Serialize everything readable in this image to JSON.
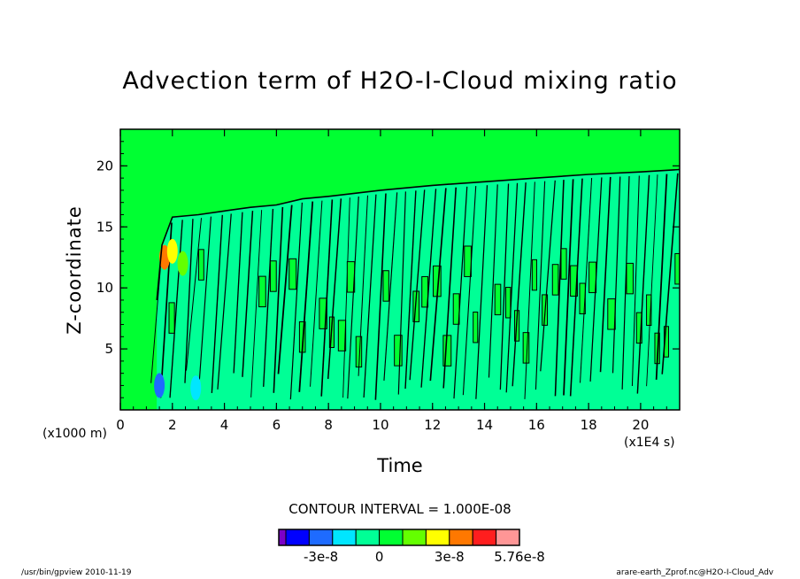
{
  "page": {
    "title": "Advection term of H2O-I-Cloud mixing ratio",
    "x_units": "(x1000 m)",
    "x_scale": "(x1E4 s)",
    "contour_interval": "CONTOUR INTERVAL = 1.000E-08",
    "footer_left": "/usr/bin/gpview  2010-11-19",
    "footer_right": "arare-earth_Zprof.nc@H2O-I-Cloud_Adv"
  },
  "chart_data": {
    "type": "heatmap",
    "title": "Advection term of H2O-I-Cloud mixing ratio",
    "xlabel": "Time",
    "ylabel": "Z-coordinate",
    "xlim": [
      0,
      21.5
    ],
    "ylim": [
      0,
      23
    ],
    "x_ticks": [
      0,
      2,
      4,
      6,
      8,
      10,
      12,
      14,
      16,
      18,
      20
    ],
    "y_ticks": [
      5,
      10,
      15,
      20
    ],
    "contour_interval": 1e-08,
    "colorbar": {
      "colors": [
        "#7b00c8",
        "#0000ff",
        "#1e6bff",
        "#00e6ff",
        "#00ff96",
        "#00ff32",
        "#64ff00",
        "#ffff00",
        "#ff7800",
        "#ff1e1e",
        "#ff9696"
      ],
      "labels": [
        "-3e-8",
        "0",
        "3e-8",
        "5.76e-8"
      ]
    },
    "background_value_color": "#00ff32",
    "negative_value_color": "#00ff96",
    "cloud_top": {
      "x": [
        1.4,
        1.6,
        2.0,
        3.0,
        4.0,
        5.0,
        6.0,
        7.0,
        8.0,
        10.0,
        12.0,
        14.0,
        16.0,
        18.0,
        20.0,
        21.5
      ],
      "y": [
        9.0,
        13.5,
        15.8,
        16.0,
        16.3,
        16.6,
        16.8,
        17.3,
        17.5,
        18.0,
        18.4,
        18.7,
        19.0,
        19.3,
        19.5,
        19.7
      ]
    }
  }
}
